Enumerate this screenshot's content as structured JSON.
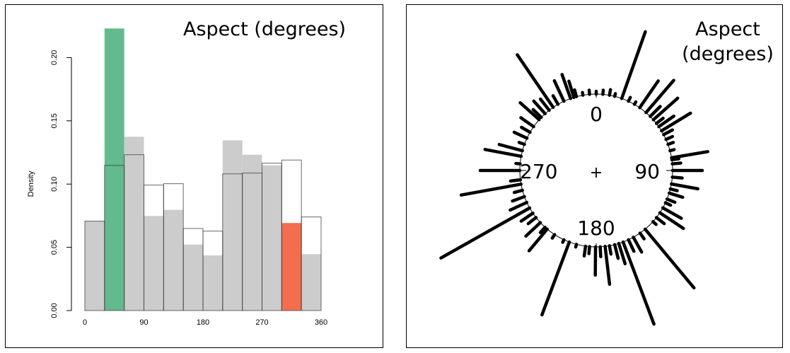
{
  "chart_data": [
    {
      "type": "bar",
      "title": "Aspect (degrees)",
      "xlabel": "",
      "ylabel": "Density",
      "xlim": [
        0,
        360
      ],
      "ylim": [
        0,
        0.22
      ],
      "xticks": [
        "0",
        "90",
        "180",
        "270",
        "360"
      ],
      "xtick_values": [
        0,
        90,
        180,
        270,
        360
      ],
      "yticks": [
        "0.00",
        "0.05",
        "0.10",
        "0.15",
        "0.20"
      ],
      "ytick_values": [
        0,
        0.05,
        0.1,
        0.15,
        0.2
      ],
      "bin_edges": [
        0,
        30,
        60,
        90,
        120,
        150,
        180,
        210,
        240,
        270,
        300,
        330,
        360
      ],
      "series": [
        {
          "name": "filled",
          "style": "filled",
          "values": [
            0.0707,
            0.223,
            0.1374,
            0.0748,
            0.0796,
            0.0522,
            0.0436,
            0.1346,
            0.1232,
            0.1148,
            0.0692,
            0.0446
          ],
          "colors": [
            "#cccccc",
            "#63ba8c",
            "#cccccc",
            "#cccccc",
            "#cccccc",
            "#cccccc",
            "#cccccc",
            "#cccccc",
            "#cccccc",
            "#cccccc",
            "#f46d4c",
            "#cccccc"
          ]
        },
        {
          "name": "outline",
          "style": "outline",
          "values": [
            0.0707,
            0.1148,
            0.1232,
            0.0992,
            0.1003,
            0.0649,
            0.0628,
            0.1081,
            0.1087,
            0.1165,
            0.119,
            0.074
          ]
        }
      ]
    },
    {
      "type": "rose",
      "title_line1": "Aspect",
      "title_line2": "(degrees)",
      "direction_labels": [
        "0",
        "90",
        "180",
        "270"
      ],
      "center_mark": "+",
      "spikes": [
        [
          19.5,
          50
        ],
        [
          325.7,
          45
        ],
        [
          240.6,
          72
        ],
        [
          200.6,
          55
        ],
        [
          159.4,
          62
        ],
        [
          140.2,
          54
        ],
        [
          259.7,
          43
        ],
        [
          270,
          28
        ],
        [
          280.7,
          26
        ],
        [
          80.4,
          26
        ],
        [
          90,
          21
        ],
        [
          100.2,
          19
        ],
        [
          58.7,
          24
        ],
        [
          40.7,
          30
        ],
        [
          48.4,
          23
        ],
        [
          34.7,
          23
        ],
        [
          123.6,
          20
        ],
        [
          219.9,
          20
        ],
        [
          180.5,
          20
        ],
        [
          173.3,
          27
        ],
        [
          340.4,
          18
        ],
        [
          335,
          16
        ],
        [
          311.7,
          18
        ],
        [
          285,
          17
        ],
        [
          245.3,
          13
        ],
        [
          227,
          14
        ],
        [
          162.8,
          15
        ],
        [
          150.9,
          12
        ],
        [
          119.3,
          15
        ],
        [
          107.2,
          10
        ],
        [
          81.9,
          5
        ],
        [
          0,
          2
        ],
        [
          5,
          3
        ],
        [
          10,
          4
        ],
        [
          14,
          2
        ],
        [
          25,
          3
        ],
        [
          30,
          2
        ],
        [
          45,
          10
        ],
        [
          52,
          6
        ],
        [
          55,
          13
        ],
        [
          62,
          7
        ],
        [
          66,
          5
        ],
        [
          70,
          4
        ],
        [
          75,
          3
        ],
        [
          85,
          6
        ],
        [
          95,
          7
        ],
        [
          104,
          5
        ],
        [
          112,
          6
        ],
        [
          115,
          4
        ],
        [
          128,
          7
        ],
        [
          132,
          3
        ],
        [
          145,
          5
        ],
        [
          155,
          9
        ],
        [
          166,
          10
        ],
        [
          170,
          6
        ],
        [
          177,
          7
        ],
        [
          185,
          5
        ],
        [
          188,
          7
        ],
        [
          195,
          2
        ],
        [
          205,
          2
        ],
        [
          213,
          3
        ],
        [
          222,
          5
        ],
        [
          232,
          7
        ],
        [
          236,
          10
        ],
        [
          250,
          9
        ],
        [
          255,
          6
        ],
        [
          263,
          7
        ],
        [
          275,
          3
        ],
        [
          290,
          4
        ],
        [
          295,
          10
        ],
        [
          300,
          7
        ],
        [
          305,
          11
        ],
        [
          318,
          12
        ],
        [
          322,
          10
        ],
        [
          330,
          7
        ],
        [
          345,
          5
        ],
        [
          350,
          2
        ],
        [
          355,
          3
        ],
        [
          343,
          12
        ],
        [
          314,
          8
        ]
      ]
    }
  ]
}
